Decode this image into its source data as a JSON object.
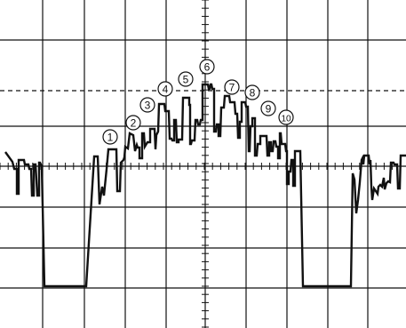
{
  "colors": {
    "background": "#ffffff",
    "ink": "#111111"
  },
  "graticule": {
    "major_divisions_x": 10,
    "major_divisions_y": 8,
    "minor_ticks_per_division": 5,
    "reference_line": "dashed"
  },
  "markers": [
    {
      "label": "1"
    },
    {
      "label": "2"
    },
    {
      "label": "3"
    },
    {
      "label": "4"
    },
    {
      "label": "5"
    },
    {
      "label": "6"
    },
    {
      "label": "7"
    },
    {
      "label": "8"
    },
    {
      "label": "9"
    },
    {
      "label": "10"
    }
  ]
}
